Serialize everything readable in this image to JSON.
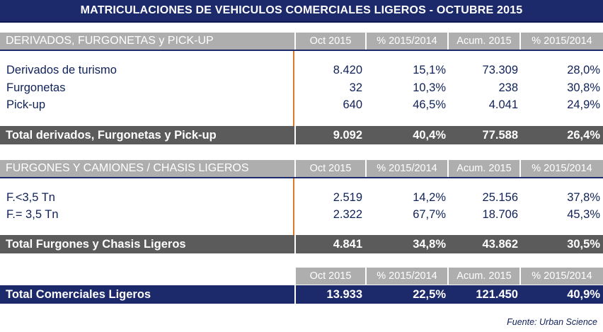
{
  "title": "MATRICULACIONES DE VEHICULOS COMERCIALES LIGEROS - OCTUBRE 2015",
  "columns": [
    "Oct 2015",
    "% 2015/2014",
    "Acum. 2015",
    "% 2015/2014"
  ],
  "section1": {
    "heading": "DERIVADOS, FURGONETAS y PICK-UP",
    "rows": [
      {
        "label": "Derivados de turismo",
        "oct": "8.420",
        "pct": "15,1%",
        "acum": "73.309",
        "pct_acum": "28,0%"
      },
      {
        "label": "Furgonetas",
        "oct": "32",
        "pct": "10,3%",
        "acum": "238",
        "pct_acum": "30,8%"
      },
      {
        "label": "Pick-up",
        "oct": "640",
        "pct": "46,5%",
        "acum": "4.041",
        "pct_acum": "24,9%"
      }
    ],
    "total": {
      "label": "Total derivados, Furgonetas y Pick-up",
      "oct": "9.092",
      "pct": "40,4%",
      "acum": "77.588",
      "pct_acum": "26,4%"
    }
  },
  "section2": {
    "heading": "FURGONES Y CAMIONES / CHASIS LIGEROS",
    "rows": [
      {
        "label": "F.<3,5 Tn",
        "oct": "2.519",
        "pct": "14,2%",
        "acum": "25.156",
        "pct_acum": "37,8%"
      },
      {
        "label": "F.= 3,5 Tn",
        "oct": "2.322",
        "pct": "67,7%",
        "acum": "18.706",
        "pct_acum": "45,3%"
      }
    ],
    "total": {
      "label": "Total Furgones y Chasis Ligeros",
      "oct": "4.841",
      "pct": "34,8%",
      "acum": "43.862",
      "pct_acum": "30,5%"
    }
  },
  "grand_total": {
    "label": "Total Comerciales Ligeros",
    "oct": "13.933",
    "pct": "22,5%",
    "acum": "121.450",
    "pct_acum": "40,9%"
  },
  "source": "Fuente: Urban Science",
  "colors": {
    "navy": "#1c2a6b",
    "header_gray": "#aeaeae",
    "total_gray": "#5b5b5b",
    "divider_orange": "#e0782c"
  }
}
